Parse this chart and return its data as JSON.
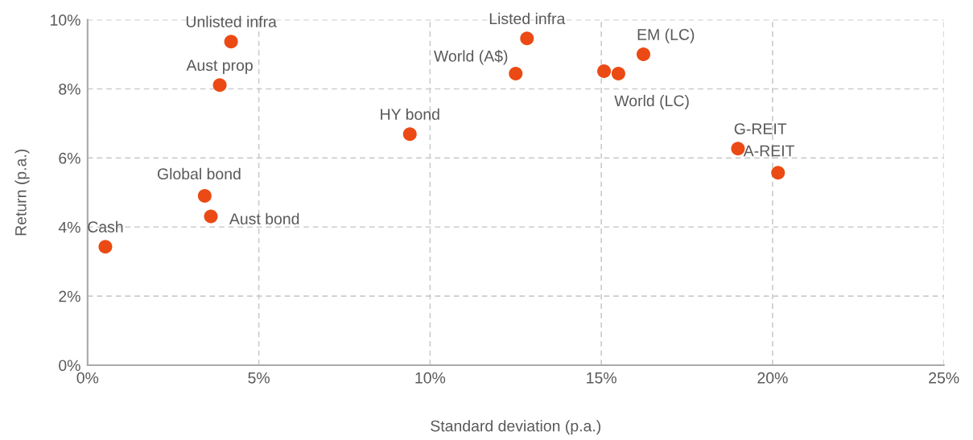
{
  "chart_data": {
    "type": "scatter",
    "xlabel": "Standard deviation (p.a.)",
    "ylabel": "Return (p.a.)",
    "x": [
      4.19,
      3.86,
      9.41,
      3.42,
      3.6,
      0.52,
      12.83,
      12.5,
      15.08,
      15.5,
      16.23,
      18.99,
      20.16
    ],
    "series": [
      {
        "color": "#eb4a14",
        "values": [
          9.37,
          8.11,
          6.69,
          4.9,
          4.31,
          3.43,
          9.46,
          8.44,
          8.51,
          8.44,
          9.0,
          6.27,
          5.57
        ]
      }
    ],
    "annotations": [
      {
        "text": "Unlisted infra",
        "x": 4.19,
        "y": 9.37
      },
      {
        "text": "Aust prop",
        "x": 3.86,
        "y": 8.11
      },
      {
        "text": "HY bond",
        "x": 9.41,
        "y": 6.69
      },
      {
        "text": "Global bond",
        "x": 3.42,
        "y": 4.9
      },
      {
        "text": "Aust bond",
        "x": 3.6,
        "y": 4.31
      },
      {
        "text": "Cash",
        "x": 0.52,
        "y": 3.43
      },
      {
        "text": "Listed infra",
        "x": 12.83,
        "y": 9.46
      },
      {
        "text": "World (A$)",
        "x": 12.5,
        "y": 8.44
      },
      {
        "text": "World (LC)",
        "x": 15.5,
        "y": 8.44
      },
      {
        "text": "EM (LC)",
        "x": 16.23,
        "y": 9.0
      },
      {
        "text": "G-REIT",
        "x": 18.99,
        "y": 6.27
      },
      {
        "text": "A-REIT",
        "x": 20.16,
        "y": 5.57
      }
    ],
    "xlim": [
      0,
      25
    ],
    "ylim": [
      0,
      10
    ],
    "xticks": [
      {
        "value": 0,
        "label": "0%"
      },
      {
        "value": 5,
        "label": "5%"
      },
      {
        "value": 10,
        "label": "10%"
      },
      {
        "value": 15,
        "label": "15%"
      },
      {
        "value": 20,
        "label": "20%"
      },
      {
        "value": 25,
        "label": "25%"
      }
    ],
    "yticks": [
      {
        "value": 0,
        "label": "0%"
      },
      {
        "value": 2,
        "label": "2%"
      },
      {
        "value": 4,
        "label": "4%"
      },
      {
        "value": 6,
        "label": "6%"
      },
      {
        "value": 8,
        "label": "8%"
      },
      {
        "value": 10,
        "label": "10%"
      }
    ],
    "grid": true,
    "marker": "circle"
  }
}
